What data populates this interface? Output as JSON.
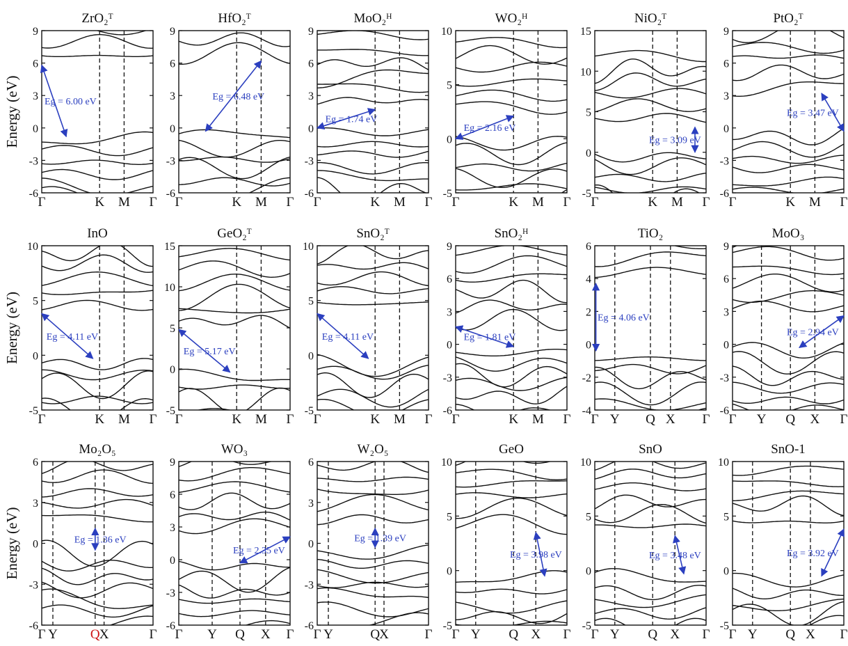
{
  "figure": {
    "ylabel": "Energy (eV)",
    "colors": {
      "band": "#111111",
      "arrow": "#2b3fbf",
      "highlight": "#cc1111"
    }
  },
  "chart_data": [
    {
      "type": "line",
      "title": "ZrO₂ᵀ",
      "ylim": [
        -6,
        9
      ],
      "yticks": [
        9,
        6,
        3,
        0,
        -3,
        -6
      ],
      "kpath": [
        "Γ",
        "K",
        "M",
        "Γ"
      ],
      "kpos": [
        0,
        0.52,
        0.74,
        1
      ],
      "vlines": [
        0.52,
        0.74
      ],
      "gap": {
        "label": "Eg = 6.00 eV",
        "from": [
          0,
          5.8
        ],
        "to": [
          0.22,
          -0.8
        ]
      }
    },
    {
      "type": "line",
      "title": "HfO₂ᵀ",
      "ylim": [
        -6,
        9
      ],
      "yticks": [
        9,
        6,
        3,
        0,
        -3,
        -6
      ],
      "kpath": [
        "Γ",
        "K",
        "M",
        "Γ"
      ],
      "kpos": [
        0,
        0.52,
        0.74,
        1
      ],
      "vlines": [
        0.52,
        0.74
      ],
      "gap": {
        "label": "Eg = 6.48 eV",
        "from": [
          0.24,
          -0.3
        ],
        "to": [
          0.74,
          6.2
        ]
      }
    },
    {
      "type": "line",
      "title": "MoO₂ᴴ",
      "ylim": [
        -6,
        9
      ],
      "yticks": [
        9,
        6,
        3,
        0,
        -3,
        -6
      ],
      "kpath": [
        "Γ",
        "K",
        "M",
        "Γ"
      ],
      "kpos": [
        0,
        0.52,
        0.74,
        1
      ],
      "vlines": [
        0.52,
        0.74
      ],
      "gap": {
        "label": "Eg = 1.74 eV",
        "from": [
          0,
          0
        ],
        "to": [
          0.52,
          1.7
        ]
      }
    },
    {
      "type": "line",
      "title": "WO₂ᴴ",
      "ylim": [
        -5,
        10
      ],
      "yticks": [
        10,
        5,
        0,
        -5
      ],
      "kpath": [
        "Γ",
        "K",
        "M",
        "Γ"
      ],
      "kpos": [
        0,
        0.52,
        0.74,
        1
      ],
      "vlines": [
        0.52,
        0.74
      ],
      "gap": {
        "label": "Eg = 2.16 eV",
        "from": [
          0,
          0
        ],
        "to": [
          0.52,
          2.1
        ]
      }
    },
    {
      "type": "line",
      "title": "NiO₂ᵀ",
      "ylim": [
        -5,
        15
      ],
      "yticks": [
        15,
        10,
        5,
        0,
        -5
      ],
      "kpath": [
        "Γ",
        "K",
        "M",
        "Γ"
      ],
      "kpos": [
        0,
        0.52,
        0.74,
        1
      ],
      "vlines": [
        0.52,
        0.74
      ],
      "gap": {
        "label": "Eg = 3.09 eV",
        "from": [
          0.9,
          3.1
        ],
        "to": [
          0.9,
          0
        ]
      }
    },
    {
      "type": "line",
      "title": "PtO₂ᵀ",
      "ylim": [
        -6,
        9
      ],
      "yticks": [
        9,
        6,
        3,
        0,
        -3,
        -6
      ],
      "kpath": [
        "Γ",
        "K",
        "M",
        "Γ"
      ],
      "kpos": [
        0,
        0.52,
        0.74,
        1
      ],
      "vlines": [
        0.52,
        0.74
      ],
      "gap": {
        "label": "Eg = 3.47 eV",
        "from": [
          0.8,
          3.2
        ],
        "to": [
          1,
          -0.3
        ]
      }
    },
    {
      "type": "line",
      "title": "InO",
      "ylim": [
        -5,
        10
      ],
      "yticks": [
        10,
        5,
        0,
        -5
      ],
      "kpath": [
        "Γ",
        "K",
        "M",
        "Γ"
      ],
      "kpos": [
        0,
        0.52,
        0.74,
        1
      ],
      "vlines": [
        0.52,
        0.74
      ],
      "gap": {
        "label": "Eg = 4.11 eV",
        "from": [
          0,
          3.8
        ],
        "to": [
          0.46,
          -0.3
        ]
      }
    },
    {
      "type": "line",
      "title": "GeO₂ᵀ",
      "ylim": [
        -5,
        15
      ],
      "yticks": [
        15,
        10,
        5,
        0,
        -5
      ],
      "kpath": [
        "Γ",
        "K",
        "M",
        "Γ"
      ],
      "kpos": [
        0,
        0.52,
        0.74,
        1
      ],
      "vlines": [
        0.52,
        0.74
      ],
      "gap": {
        "label": "Eg = 5.17 eV",
        "from": [
          0,
          4.8
        ],
        "to": [
          0.46,
          -0.4
        ]
      }
    },
    {
      "type": "line",
      "title": "SnO₂ᵀ",
      "ylim": [
        -5,
        10
      ],
      "yticks": [
        10,
        5,
        0,
        -5
      ],
      "kpath": [
        "Γ",
        "K",
        "M",
        "Γ"
      ],
      "kpos": [
        0,
        0.52,
        0.74,
        1
      ],
      "vlines": [
        0.52,
        0.74
      ],
      "gap": {
        "label": "Eg = 4.11 eV",
        "from": [
          0,
          3.8
        ],
        "to": [
          0.46,
          -0.3
        ]
      }
    },
    {
      "type": "line",
      "title": "SnO₂ᴴ",
      "ylim": [
        -6,
        9
      ],
      "yticks": [
        9,
        6,
        3,
        0,
        -3,
        -6
      ],
      "kpath": [
        "Γ",
        "K",
        "M",
        "Γ"
      ],
      "kpos": [
        0,
        0.52,
        0.74,
        1
      ],
      "vlines": [
        0.52,
        0.74
      ],
      "gap": {
        "label": "Eg = 1.81 eV",
        "from": [
          0,
          1.6
        ],
        "to": [
          0.52,
          -0.2
        ]
      }
    },
    {
      "type": "line",
      "title": "TiO₂",
      "ylim": [
        -4,
        6
      ],
      "yticks": [
        6,
        4,
        2,
        0,
        -2,
        -4
      ],
      "kpath": [
        "Γ",
        "Y",
        "Q",
        "X",
        "Γ"
      ],
      "kpos": [
        0,
        0.18,
        0.5,
        0.68,
        1
      ],
      "vlines": [
        0.18,
        0.5,
        0.68
      ],
      "gap": {
        "label": "Eg = 4.06 eV",
        "from": [
          0.01,
          3.7
        ],
        "to": [
          0.01,
          -0.4
        ]
      }
    },
    {
      "type": "line",
      "title": "MoO₃",
      "ylim": [
        -6,
        9
      ],
      "yticks": [
        9,
        6,
        3,
        0,
        -3,
        -6
      ],
      "kpath": [
        "Γ",
        "Y",
        "Q",
        "X",
        "Γ"
      ],
      "kpos": [
        0,
        0.26,
        0.52,
        0.74,
        1
      ],
      "vlines": [
        0.26,
        0.52,
        0.74
      ],
      "gap": {
        "label": "Eg = 2.94 eV",
        "from": [
          1,
          2.6
        ],
        "to": [
          0.6,
          -0.3
        ]
      }
    },
    {
      "type": "line",
      "title": "Mo₂O₅",
      "ylim": [
        -6,
        6
      ],
      "yticks": [
        6,
        3,
        0,
        -3,
        -6
      ],
      "kpath": [
        "Γ",
        "Y",
        "Q",
        "X",
        "Γ"
      ],
      "kpos": [
        0,
        0.1,
        0.48,
        0.56,
        1
      ],
      "vlines": [
        0.1,
        0.48,
        0.56
      ],
      "highlight_label": "Q",
      "gap": {
        "label": "Eg = 1.36 eV",
        "from": [
          0.48,
          1.1
        ],
        "to": [
          0.48,
          -0.5
        ]
      }
    },
    {
      "type": "line",
      "title": "WO₃",
      "ylim": [
        -6,
        9
      ],
      "yticks": [
        9,
        6,
        3,
        0,
        -3,
        -6
      ],
      "kpath": [
        "Γ",
        "Y",
        "Q",
        "X",
        "Γ"
      ],
      "kpos": [
        0,
        0.3,
        0.55,
        0.78,
        1
      ],
      "vlines": [
        0.3,
        0.55,
        0.78
      ],
      "gap": {
        "label": "Eg = 2.35 eV",
        "from": [
          1,
          2.1
        ],
        "to": [
          0.55,
          -0.3
        ]
      }
    },
    {
      "type": "line",
      "title": "W₂O₅",
      "ylim": [
        -6,
        6
      ],
      "yticks": [
        6,
        3,
        0,
        -3,
        -6
      ],
      "kpath": [
        "Γ",
        "Y",
        "Q",
        "X",
        "Γ"
      ],
      "kpos": [
        0,
        0.1,
        0.52,
        0.6,
        1
      ],
      "vlines": [
        0.1,
        0.52,
        0.6
      ],
      "gap": {
        "label": "Eg = 1.39 eV",
        "from": [
          0.52,
          1.1
        ],
        "to": [
          0.52,
          -0.3
        ]
      }
    },
    {
      "type": "line",
      "title": "GeO",
      "ylim": [
        -5,
        10
      ],
      "yticks": [
        10,
        5,
        0,
        -5
      ],
      "kpath": [
        "Γ",
        "Y",
        "Q",
        "X",
        "Γ"
      ],
      "kpos": [
        0,
        0.18,
        0.52,
        0.72,
        1
      ],
      "vlines": [
        0.18,
        0.52,
        0.72
      ],
      "gap": {
        "label": "Eg = 3.98 eV",
        "from": [
          0.72,
          3.5
        ],
        "to": [
          0.8,
          -0.5
        ]
      }
    },
    {
      "type": "line",
      "title": "SnO",
      "ylim": [
        -5,
        10
      ],
      "yticks": [
        10,
        5,
        0,
        -5
      ],
      "kpath": [
        "Γ",
        "Y",
        "Q",
        "X",
        "Γ"
      ],
      "kpos": [
        0,
        0.18,
        0.52,
        0.72,
        1
      ],
      "vlines": [
        0.18,
        0.52,
        0.72
      ],
      "gap": {
        "label": "Eg = 3.48 eV",
        "from": [
          0.72,
          3.2
        ],
        "to": [
          0.8,
          -0.3
        ]
      }
    },
    {
      "type": "line",
      "title": "SnO-1",
      "ylim": [
        -5,
        10
      ],
      "yticks": [
        10,
        5,
        0,
        -5
      ],
      "kpath": [
        "Γ",
        "Y",
        "Q",
        "X",
        "Γ"
      ],
      "kpos": [
        0,
        0.18,
        0.52,
        0.7,
        1
      ],
      "vlines": [
        0.18,
        0.52,
        0.7
      ],
      "gap": {
        "label": "Eg = 3.92 eV",
        "from": [
          1,
          3.8
        ],
        "to": [
          0.8,
          -0.5
        ]
      }
    }
  ]
}
